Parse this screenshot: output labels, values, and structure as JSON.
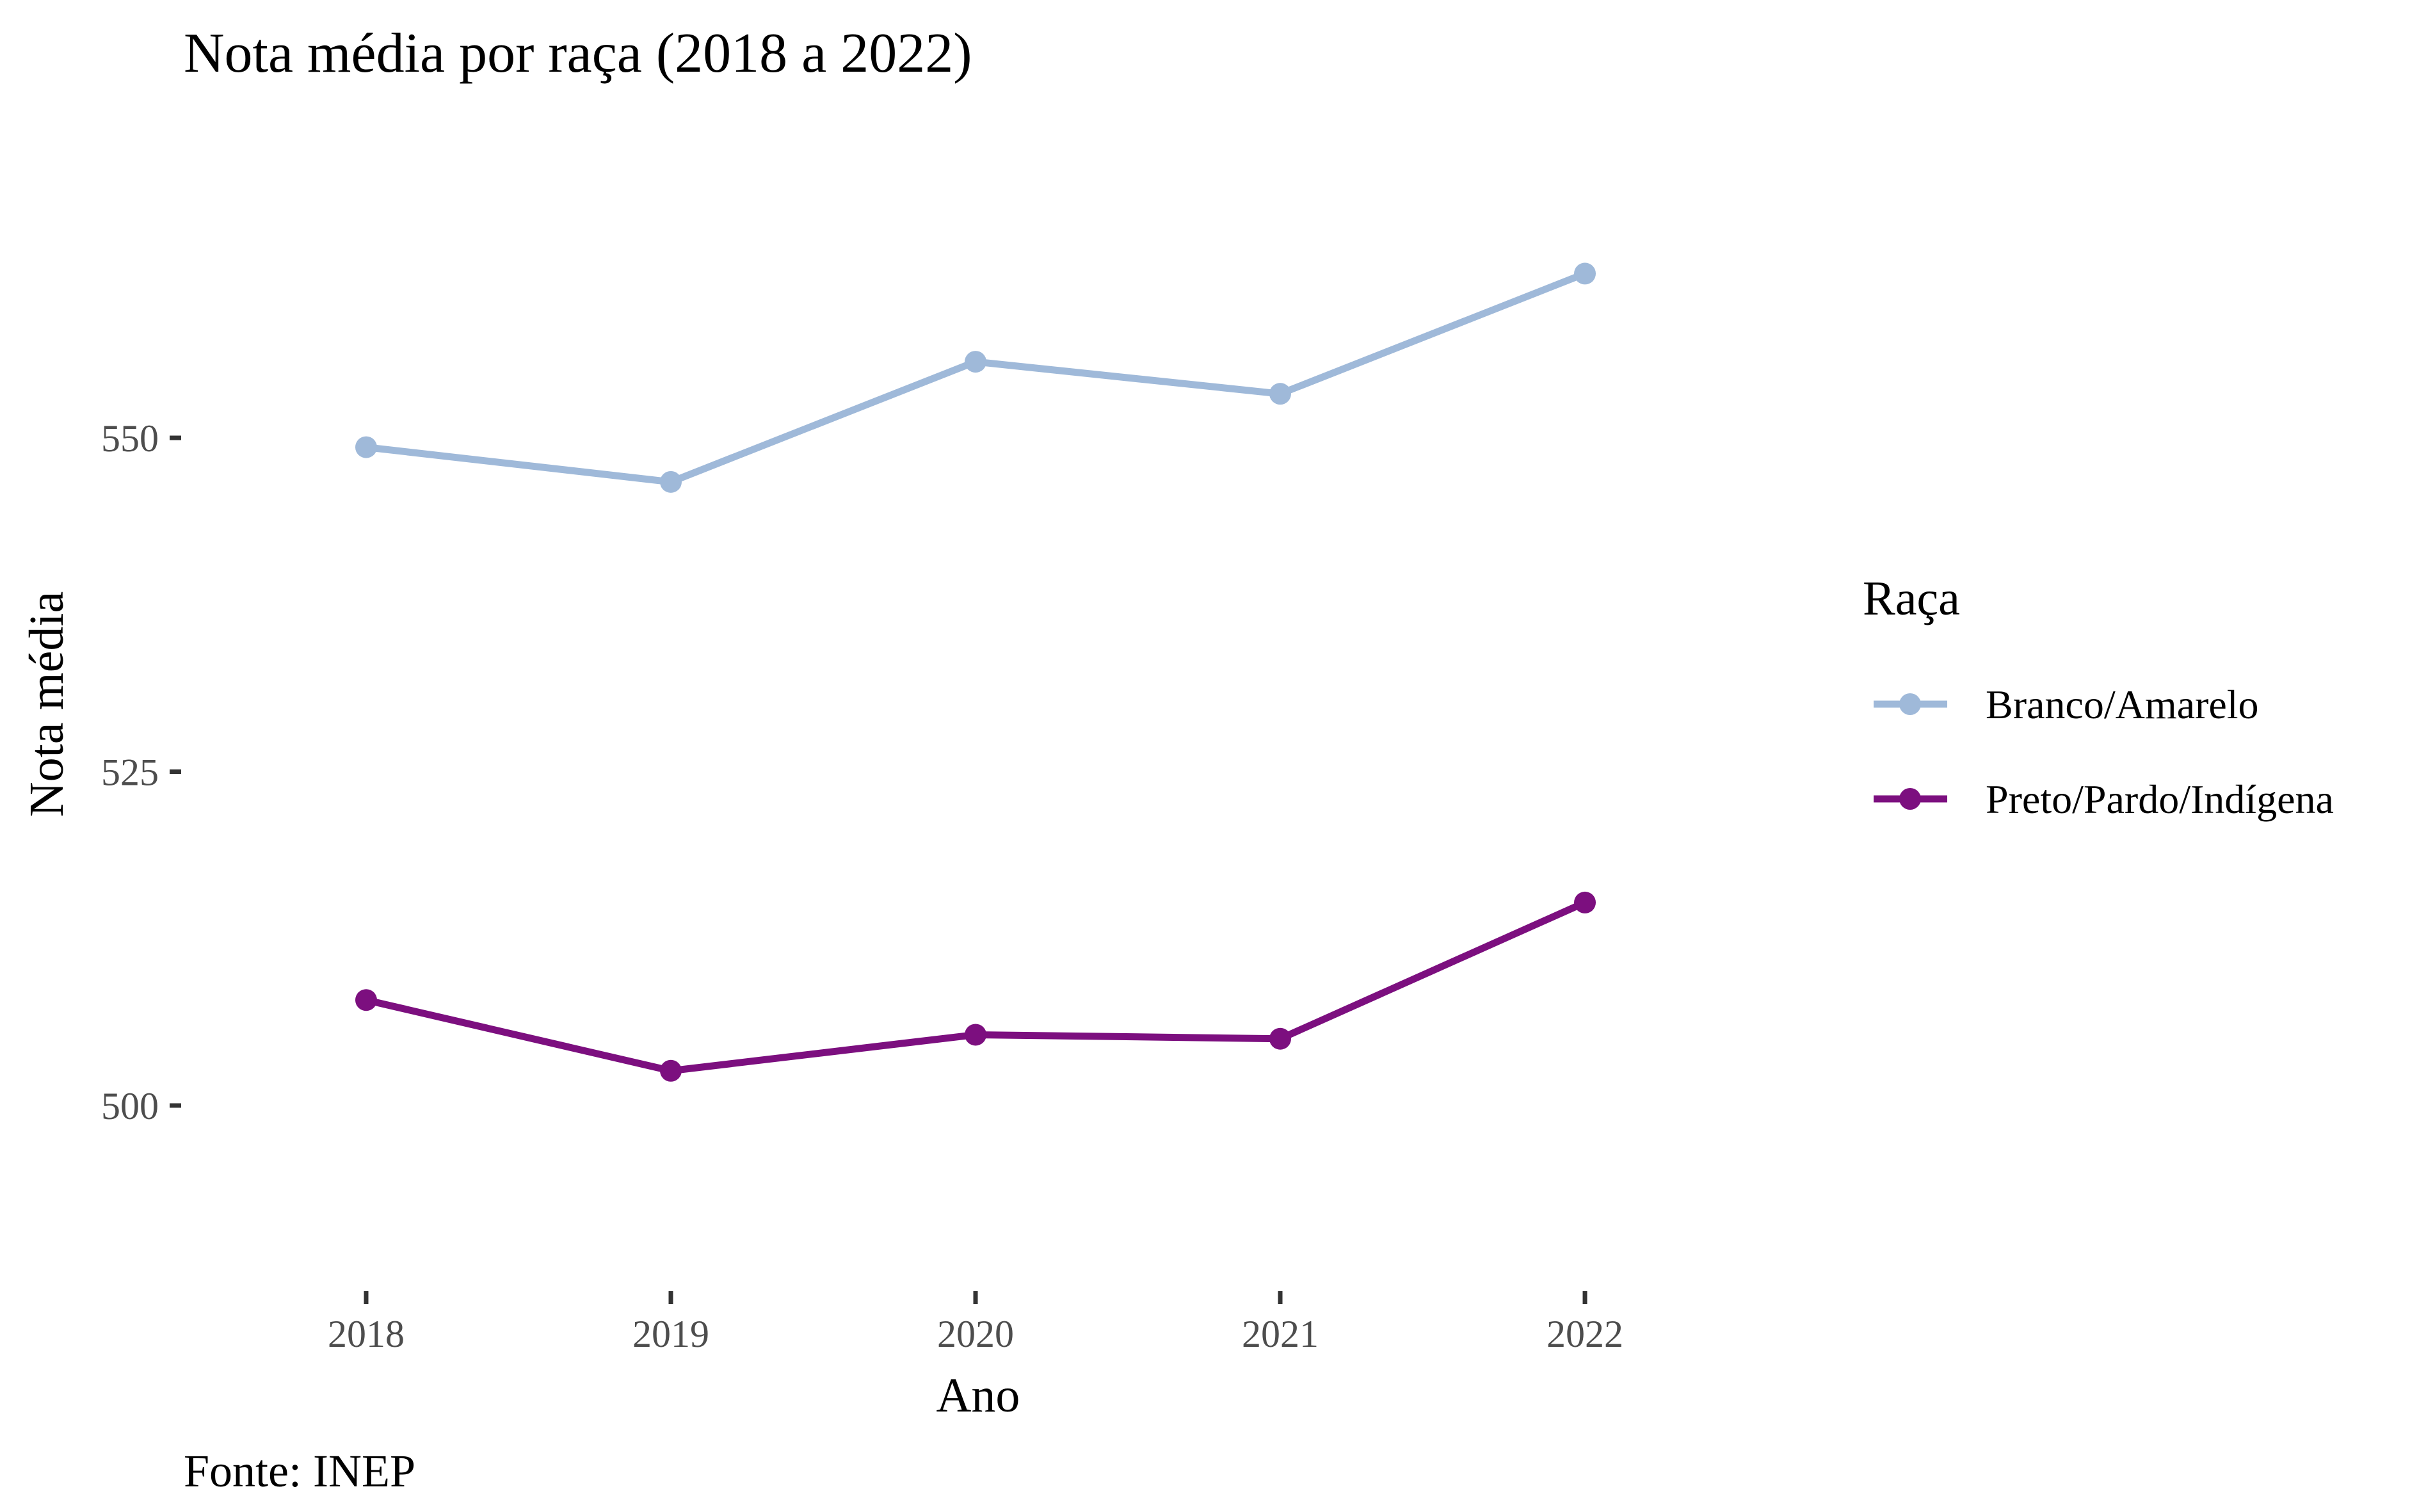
{
  "chart_data": {
    "type": "line",
    "title": "Nota média por raça (2018 a 2022)",
    "xlabel": "Ano",
    "ylabel": "Nota média",
    "caption": "Fonte: INEP",
    "x": [
      "2018",
      "2019",
      "2020",
      "2021",
      "2022"
    ],
    "yticks": [
      500,
      525,
      550
    ],
    "ylim": [
      487,
      575
    ],
    "grid": false,
    "legend": {
      "title": "Raça",
      "placement": "right"
    },
    "series": [
      {
        "name": "Branco/Amarelo",
        "color": "#9fb9d9",
        "values": [
          549.3,
          546.7,
          555.7,
          553.3,
          562.3
        ]
      },
      {
        "name": "Preto/Pardo/Indígena",
        "color": "#7c0f7f",
        "values": [
          507.9,
          502.6,
          505.3,
          505.0,
          515.2
        ]
      }
    ]
  }
}
